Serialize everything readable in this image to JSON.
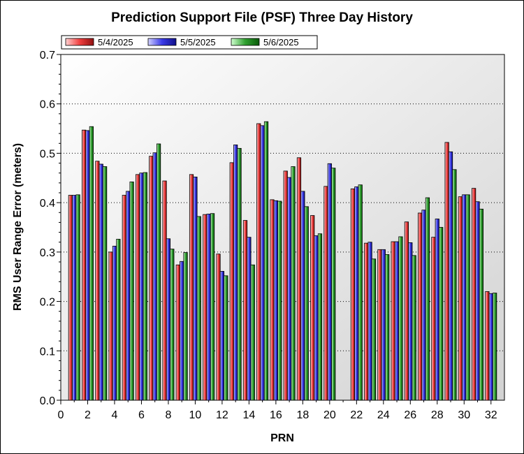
{
  "chart_data": {
    "type": "bar",
    "title": "Prediction Support File (PSF) Three Day History",
    "xlabel": "PRN",
    "ylabel": "RMS User Range Error (meters)",
    "ylim": [
      0,
      0.7
    ],
    "xlim": [
      0,
      33
    ],
    "yticks": [
      "0.0",
      "0.1",
      "0.2",
      "0.3",
      "0.4",
      "0.5",
      "0.6",
      "0.7"
    ],
    "xticks": [
      "0",
      "2",
      "4",
      "6",
      "8",
      "10",
      "12",
      "14",
      "16",
      "18",
      "20",
      "22",
      "24",
      "26",
      "28",
      "30",
      "32"
    ],
    "grid": true,
    "legend_position": "top-left",
    "categories": [
      1,
      2,
      3,
      4,
      5,
      6,
      7,
      8,
      9,
      10,
      11,
      12,
      13,
      14,
      15,
      16,
      17,
      18,
      19,
      20,
      21,
      22,
      23,
      24,
      25,
      26,
      27,
      28,
      29,
      30,
      31,
      32
    ],
    "series": [
      {
        "name": "5/4/2025",
        "color": "#e83030",
        "values": [
          0.415,
          0.547,
          0.484,
          0.3,
          0.415,
          0.457,
          0.494,
          0.444,
          0.274,
          0.457,
          0.376,
          0.296,
          0.481,
          0.364,
          0.56,
          0.406,
          0.464,
          0.491,
          0.374,
          0.433,
          null,
          0.428,
          0.318,
          0.305,
          0.321,
          0.361,
          0.379,
          0.33,
          0.522,
          0.412,
          0.429,
          0.22
        ]
      },
      {
        "name": "5/5/2025",
        "color": "#3a3ae8",
        "values": [
          0.415,
          0.546,
          0.478,
          0.312,
          0.423,
          0.46,
          0.501,
          0.327,
          0.281,
          0.452,
          0.377,
          0.261,
          0.517,
          0.33,
          0.556,
          0.404,
          0.451,
          0.423,
          0.333,
          0.479,
          null,
          0.432,
          0.32,
          0.305,
          0.321,
          0.319,
          0.385,
          0.367,
          0.503,
          0.416,
          0.402,
          0.216
        ]
      },
      {
        "name": "5/6/2025",
        "color": "#2a9a2a",
        "values": [
          0.416,
          0.554,
          0.473,
          0.326,
          0.442,
          0.461,
          0.519,
          0.306,
          0.299,
          0.372,
          0.378,
          0.252,
          0.51,
          0.274,
          0.564,
          0.403,
          0.473,
          0.392,
          0.337,
          0.47,
          null,
          0.436,
          0.286,
          0.295,
          0.331,
          0.293,
          0.41,
          0.35,
          0.467,
          0.416,
          0.387,
          0.217
        ]
      }
    ]
  }
}
